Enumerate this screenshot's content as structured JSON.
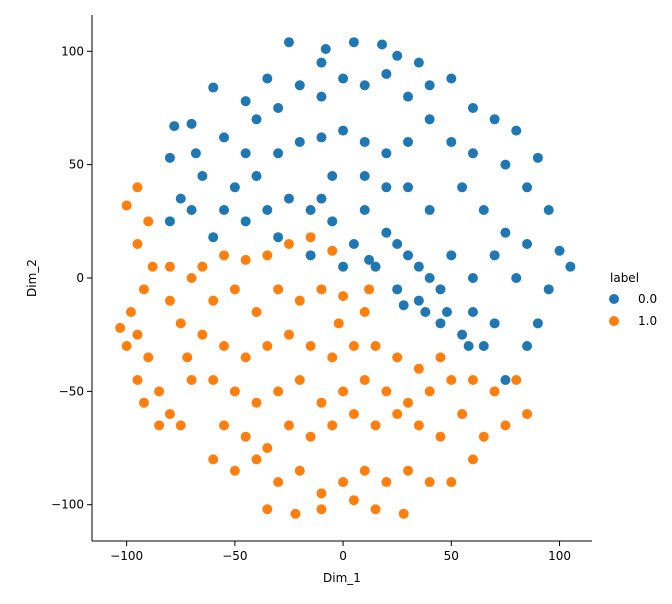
{
  "chart_data": {
    "type": "scatter",
    "x_label": "Dim_1",
    "y_label": "Dim_2",
    "legend_title": "label",
    "xlim": [
      -116,
      115
    ],
    "ylim": [
      -116,
      116
    ],
    "xticks": [
      {
        "value": -100,
        "label": "−100"
      },
      {
        "value": -50,
        "label": "−50"
      },
      0,
      50,
      100
    ],
    "yticks": [
      {
        "value": -100,
        "label": "−100"
      },
      {
        "value": -50,
        "label": "−50"
      },
      0,
      50,
      100
    ],
    "series": [
      {
        "name": "0.0",
        "color": "#1f77b4",
        "x": [
          -25,
          -8,
          18,
          5,
          25,
          -35,
          -45,
          -60,
          -70,
          -78,
          -80,
          -68,
          -55,
          -40,
          -30,
          -20,
          -10,
          0,
          10,
          20,
          30,
          40,
          50,
          60,
          70,
          80,
          -75,
          -65,
          -50,
          -40,
          -30,
          -20,
          -10,
          0,
          10,
          20,
          30,
          40,
          50,
          60,
          75,
          90,
          85,
          95,
          100,
          105,
          95,
          90,
          85,
          75,
          65,
          55,
          45,
          35,
          25,
          15,
          5,
          -5,
          -15,
          -25,
          -35,
          -45,
          -55,
          -70,
          -80,
          -60,
          -30,
          -10,
          10,
          20,
          30,
          40,
          50,
          60,
          70,
          80,
          70,
          60,
          45,
          35,
          25,
          40,
          55,
          65,
          75,
          85,
          10,
          -5,
          20,
          30,
          -15,
          0,
          12,
          28,
          38,
          48,
          58,
          -45,
          -10,
          35
        ],
        "y": [
          104,
          101,
          103,
          104,
          98,
          88,
          78,
          84,
          68,
          67,
          53,
          55,
          62,
          70,
          75,
          85,
          80,
          88,
          85,
          90,
          80,
          85,
          88,
          75,
          70,
          65,
          35,
          45,
          40,
          45,
          55,
          60,
          62,
          65,
          60,
          55,
          60,
          70,
          60,
          55,
          50,
          53,
          40,
          30,
          12,
          5,
          -5,
          -20,
          -30,
          -45,
          -30,
          -25,
          -20,
          -10,
          -5,
          5,
          15,
          25,
          30,
          35,
          30,
          25,
          30,
          30,
          25,
          18,
          18,
          35,
          30,
          20,
          10,
          0,
          10,
          0,
          10,
          0,
          -20,
          -15,
          -5,
          5,
          15,
          30,
          40,
          30,
          20,
          15,
          45,
          45,
          40,
          40,
          10,
          5,
          8,
          -12,
          -15,
          -15,
          -30,
          55,
          95,
          95
        ]
      },
      {
        "name": "1.0",
        "color": "#ff7f0e",
        "x": [
          -95,
          -100,
          -90,
          -95,
          -88,
          -92,
          -98,
          -103,
          -95,
          -100,
          -90,
          -95,
          -92,
          -85,
          -80,
          -75,
          -85,
          -70,
          -72,
          -65,
          -75,
          -80,
          -70,
          -80,
          -65,
          -55,
          -45,
          -35,
          -25,
          -15,
          -5,
          -60,
          -50,
          -40,
          -30,
          -20,
          -10,
          0,
          10,
          -55,
          -45,
          -35,
          -25,
          -15,
          -5,
          5,
          15,
          25,
          35,
          45,
          -60,
          -50,
          -40,
          -30,
          -20,
          -10,
          0,
          10,
          20,
          30,
          40,
          50,
          60,
          70,
          80,
          -55,
          -45,
          -35,
          -25,
          -15,
          -5,
          5,
          15,
          25,
          35,
          45,
          55,
          65,
          75,
          85,
          -60,
          -50,
          -40,
          -30,
          -20,
          -10,
          0,
          10,
          20,
          30,
          40,
          50,
          -35,
          -22,
          -10,
          5,
          15,
          28,
          -2,
          12,
          60
        ],
        "y": [
          40,
          32,
          25,
          15,
          5,
          -5,
          -15,
          -22,
          -25,
          -30,
          -35,
          -45,
          -55,
          -50,
          -60,
          -65,
          -65,
          -45,
          -35,
          -25,
          -20,
          -10,
          0,
          5,
          5,
          10,
          8,
          10,
          15,
          18,
          12,
          -10,
          -5,
          -15,
          -5,
          -10,
          -5,
          -8,
          -15,
          -30,
          -35,
          -30,
          -25,
          -30,
          -35,
          -30,
          -30,
          -35,
          -40,
          -35,
          -45,
          -50,
          -55,
          -50,
          -45,
          -55,
          -50,
          -45,
          -50,
          -55,
          -50,
          -45,
          -45,
          -50,
          -45,
          -65,
          -70,
          -75,
          -65,
          -70,
          -65,
          -60,
          -65,
          -60,
          -65,
          -70,
          -60,
          -70,
          -65,
          -60,
          -80,
          -85,
          -80,
          -90,
          -85,
          -95,
          -90,
          -85,
          -90,
          -85,
          -90,
          -90,
          -102,
          -104,
          -102,
          -98,
          -102,
          -104,
          -20,
          -5,
          -80
        ]
      }
    ]
  }
}
